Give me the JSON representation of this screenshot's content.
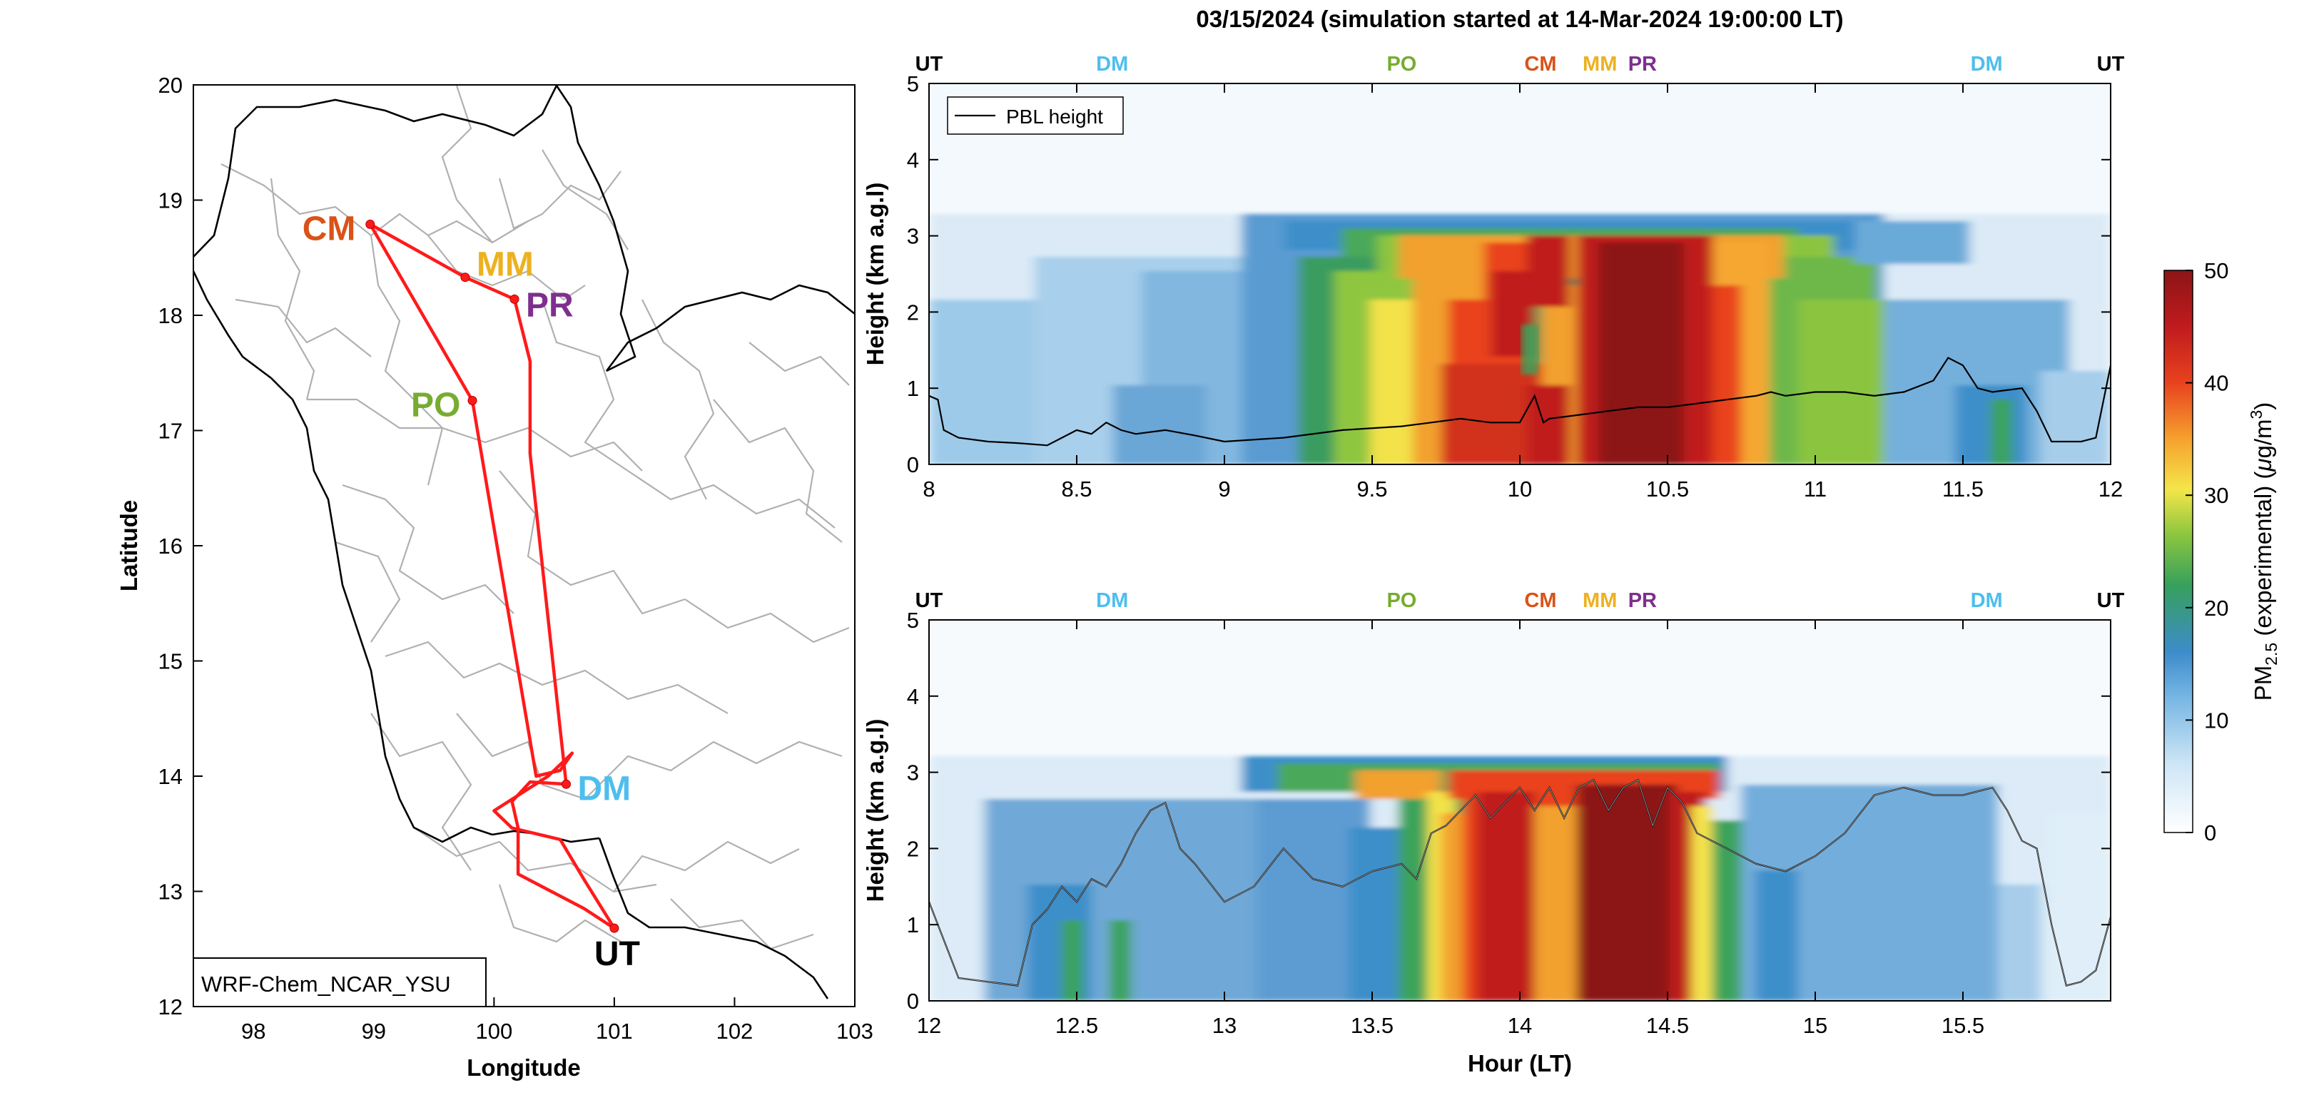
{
  "title": "03/15/2024 (simulation started at 14-Mar-2024 19:00:00 LT)",
  "colors": {
    "UT": "#000000",
    "DM": "#4DBEEE",
    "PO": "#77AC30",
    "CM": "#D95319",
    "MM": "#EDB120",
    "PR": "#7E2F8E",
    "track": "#FF0000"
  },
  "chart_data": [
    {
      "type": "map",
      "xlabel": "Longitude",
      "ylabel": "Latitude",
      "xlim": [
        97.5,
        103
      ],
      "ylim": [
        12,
        20
      ],
      "xticks": [
        98,
        99,
        100,
        101,
        102,
        103
      ],
      "yticks": [
        12,
        13,
        14,
        15,
        16,
        17,
        18,
        19,
        20
      ],
      "model_label": "WRF-Chem_NCAR_YSU",
      "stations": [
        {
          "code": "CM",
          "lon": 98.97,
          "lat": 18.79
        },
        {
          "code": "MM",
          "lon": 99.76,
          "lat": 18.33
        },
        {
          "code": "PR",
          "lon": 100.17,
          "lat": 18.14
        },
        {
          "code": "PO",
          "lon": 99.82,
          "lat": 17.26
        },
        {
          "code": "DM",
          "lon": 100.6,
          "lat": 13.93
        },
        {
          "code": "UT",
          "lon": 101.0,
          "lat": 12.68
        }
      ],
      "flight_track": [
        [
          101.0,
          12.68
        ],
        [
          100.75,
          12.85
        ],
        [
          100.2,
          13.15
        ],
        [
          100.2,
          13.55
        ],
        [
          100.15,
          13.78
        ],
        [
          100.3,
          13.95
        ],
        [
          100.6,
          13.93
        ],
        [
          100.3,
          16.8
        ],
        [
          100.3,
          17.6
        ],
        [
          100.17,
          18.14
        ],
        [
          99.76,
          18.33
        ],
        [
          98.97,
          18.79
        ],
        [
          99.82,
          17.26
        ],
        [
          100.35,
          14.0
        ],
        [
          100.55,
          14.05
        ],
        [
          100.65,
          14.2
        ],
        [
          100.45,
          14.0
        ],
        [
          100.0,
          13.7
        ],
        [
          100.15,
          13.55
        ],
        [
          100.55,
          13.45
        ],
        [
          100.75,
          13.1
        ],
        [
          101.0,
          12.68
        ]
      ]
    },
    {
      "type": "heatmap",
      "xlabel": "",
      "ylabel": "Height (km a.g.l)",
      "xlim": [
        8,
        12
      ],
      "ylim": [
        0,
        5
      ],
      "xticks": [
        8,
        8.5,
        9,
        9.5,
        10,
        10.5,
        11,
        11.5,
        12
      ],
      "yticks": [
        0,
        1,
        2,
        3,
        4,
        5
      ],
      "legend": [
        "PBL height"
      ],
      "station_marks": [
        {
          "code": "UT",
          "x": 8.0
        },
        {
          "code": "DM",
          "x": 8.62
        },
        {
          "code": "PO",
          "x": 9.6
        },
        {
          "code": "CM",
          "x": 10.07
        },
        {
          "code": "MM",
          "x": 10.3
        },
        {
          "code": "PR",
          "x": 10.42
        },
        {
          "code": "DM",
          "x": 11.58
        },
        {
          "code": "UT",
          "x": 12.0
        }
      ],
      "pbl_height": {
        "x": [
          8.0,
          8.03,
          8.05,
          8.1,
          8.2,
          8.3,
          8.4,
          8.45,
          8.5,
          8.55,
          8.6,
          8.65,
          8.7,
          8.8,
          8.9,
          9.0,
          9.2,
          9.4,
          9.6,
          9.7,
          9.8,
          9.9,
          10.0,
          10.05,
          10.08,
          10.1,
          10.2,
          10.3,
          10.4,
          10.5,
          10.6,
          10.7,
          10.8,
          10.85,
          10.9,
          11.0,
          11.1,
          11.2,
          11.3,
          11.4,
          11.45,
          11.5,
          11.55,
          11.6,
          11.7,
          11.75,
          11.8,
          11.9,
          11.95,
          12.0
        ],
        "y": [
          0.9,
          0.85,
          0.45,
          0.35,
          0.3,
          0.28,
          0.25,
          0.35,
          0.45,
          0.4,
          0.55,
          0.45,
          0.4,
          0.45,
          0.38,
          0.3,
          0.35,
          0.45,
          0.5,
          0.55,
          0.6,
          0.55,
          0.55,
          0.9,
          0.55,
          0.6,
          0.65,
          0.7,
          0.75,
          0.75,
          0.8,
          0.85,
          0.9,
          0.95,
          0.9,
          0.95,
          0.95,
          0.9,
          0.95,
          1.1,
          1.4,
          1.3,
          1.0,
          0.95,
          1.0,
          0.7,
          0.3,
          0.3,
          0.35,
          1.3
        ]
      },
      "pm25_structure": "low layer 0-1 km, elevated plume near 3 km from 9.2 to 11.2 LT, max above 50 near 10-10.5 LT"
    },
    {
      "type": "heatmap",
      "xlabel": "Hour (LT)",
      "ylabel": "Height (km a.g.l)",
      "xlim": [
        12,
        16
      ],
      "ylim": [
        0,
        5
      ],
      "xticks": [
        12,
        12.5,
        13,
        13.5,
        14,
        14.5,
        15,
        15.5
      ],
      "yticks": [
        0,
        1,
        2,
        3,
        4,
        5
      ],
      "station_marks": [
        {
          "code": "UT",
          "x": 12.0
        },
        {
          "code": "DM",
          "x": 12.62
        },
        {
          "code": "PO",
          "x": 13.6
        },
        {
          "code": "CM",
          "x": 14.07
        },
        {
          "code": "MM",
          "x": 14.3
        },
        {
          "code": "PR",
          "x": 14.42
        },
        {
          "code": "DM",
          "x": 15.58
        },
        {
          "code": "UT",
          "x": 16.0
        }
      ],
      "pbl_height": {
        "x": [
          12.0,
          12.03,
          12.1,
          12.2,
          12.3,
          12.35,
          12.4,
          12.45,
          12.5,
          12.55,
          12.6,
          12.65,
          12.7,
          12.75,
          12.8,
          12.85,
          12.9,
          13.0,
          13.1,
          13.2,
          13.3,
          13.4,
          13.5,
          13.6,
          13.65,
          13.7,
          13.75,
          13.8,
          13.85,
          13.9,
          13.95,
          14.0,
          14.05,
          14.1,
          14.15,
          14.2,
          14.25,
          14.3,
          14.35,
          14.4,
          14.45,
          14.5,
          14.55,
          14.6,
          14.7,
          14.8,
          14.9,
          15.0,
          15.1,
          15.2,
          15.3,
          15.4,
          15.5,
          15.6,
          15.65,
          15.7,
          15.75,
          15.8,
          15.85,
          15.9,
          15.95,
          16.0
        ],
        "y": [
          1.3,
          1.0,
          0.3,
          0.25,
          0.2,
          1.0,
          1.2,
          1.5,
          1.3,
          1.6,
          1.5,
          1.8,
          2.2,
          2.5,
          2.6,
          2.0,
          1.8,
          1.3,
          1.5,
          2.0,
          1.6,
          1.5,
          1.7,
          1.8,
          1.6,
          2.2,
          2.3,
          2.5,
          2.7,
          2.4,
          2.6,
          2.8,
          2.5,
          2.8,
          2.4,
          2.8,
          2.9,
          2.5,
          2.8,
          2.9,
          2.3,
          2.8,
          2.6,
          2.2,
          2.0,
          1.8,
          1.7,
          1.9,
          2.2,
          2.7,
          2.8,
          2.7,
          2.7,
          2.8,
          2.5,
          2.1,
          2.0,
          1.0,
          0.2,
          0.25,
          0.4,
          1.1
        ]
      },
      "pm25_structure": "elevated layer near 3 km from 13.2 to 14.6 LT, column max above 50 near 13.7-14.6 LT"
    }
  ],
  "colorbar": {
    "label": "PM",
    "label_sub": "2.5",
    "label_rest": " (experimental) (",
    "label_mu": "μ",
    "label_unit": "g/m",
    "label_exp": "3",
    "label_close": ")",
    "min": 0,
    "max": 50,
    "ticks": [
      0,
      10,
      20,
      30,
      40,
      50
    ]
  }
}
